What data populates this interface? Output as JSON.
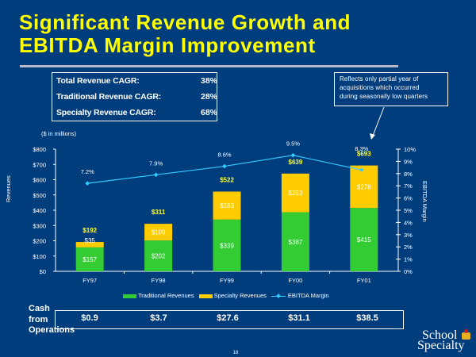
{
  "title": {
    "line1": "Significant Revenue Growth and",
    "line2": "EBITDA Margin Improvement"
  },
  "cagr": [
    {
      "label": "Total Revenue CAGR:",
      "value": "38%"
    },
    {
      "label": "Traditional Revenue CAGR:",
      "value": "28%"
    },
    {
      "label": "Specialty Revenue CAGR:",
      "value": "68%"
    }
  ],
  "note": {
    "lines": [
      "Reflects only partial year of",
      "acquisitions which occurred",
      "during seasonally low quarters"
    ]
  },
  "cash": {
    "label_lines": [
      "Cash",
      "from",
      "Operations"
    ],
    "values": [
      "$0.9",
      "$3.7",
      "$27.6",
      "$31.1",
      "$38.5"
    ]
  },
  "page_number": "18",
  "logo": {
    "line1": "School",
    "line2": "Specialty"
  },
  "colors": {
    "background": "#003d7c",
    "traditional": "#33cc33",
    "specialty": "#ffcc00",
    "ebitda": "#33ccff",
    "title": "#ffff00"
  },
  "chart_data": {
    "type": "bar",
    "stacked": true,
    "units_label": "($ in millions)",
    "ylabel": "Revenues",
    "y2label": "EBITDA Margin",
    "categories": [
      "FY97",
      "FY98",
      "FY99",
      "FY00",
      "FY01"
    ],
    "series": [
      {
        "name": "Traditional Revenues",
        "type": "bar",
        "values": [
          157,
          202,
          339,
          387,
          415
        ],
        "labels": [
          "$157",
          "$202",
          "$339",
          "$387",
          "$415"
        ]
      },
      {
        "name": "Specialty Revenues",
        "type": "bar",
        "values": [
          35,
          109,
          183,
          253,
          278
        ],
        "labels": [
          "$35",
          "$109",
          "$183",
          "$253",
          "$278"
        ]
      },
      {
        "name": "EBITDA Margin",
        "type": "line",
        "axis": "right",
        "values": [
          7.2,
          7.9,
          8.6,
          9.5,
          8.3
        ],
        "labels": [
          "7.2%",
          "7.9%",
          "8.6%",
          "9.5%",
          "8.3%"
        ]
      }
    ],
    "totals": [
      192,
      311,
      522,
      639,
      693
    ],
    "total_labels": [
      "$192",
      "$311",
      "$522",
      "$639",
      "$693"
    ],
    "ylim": [
      0,
      800
    ],
    "yticks": [
      "$0",
      "$100",
      "$200",
      "$300",
      "$400",
      "$500",
      "$600",
      "$700",
      "$800"
    ],
    "y2lim": [
      0,
      10
    ],
    "y2ticks": [
      "0%",
      "1%",
      "2%",
      "3%",
      "4%",
      "5%",
      "6%",
      "7%",
      "8%",
      "9%",
      "10%"
    ],
    "legend": [
      "Traditional Revenues",
      "Specialty Revenues",
      "EBITDA Margin"
    ],
    "legend_position": "bottom",
    "grid": false
  }
}
